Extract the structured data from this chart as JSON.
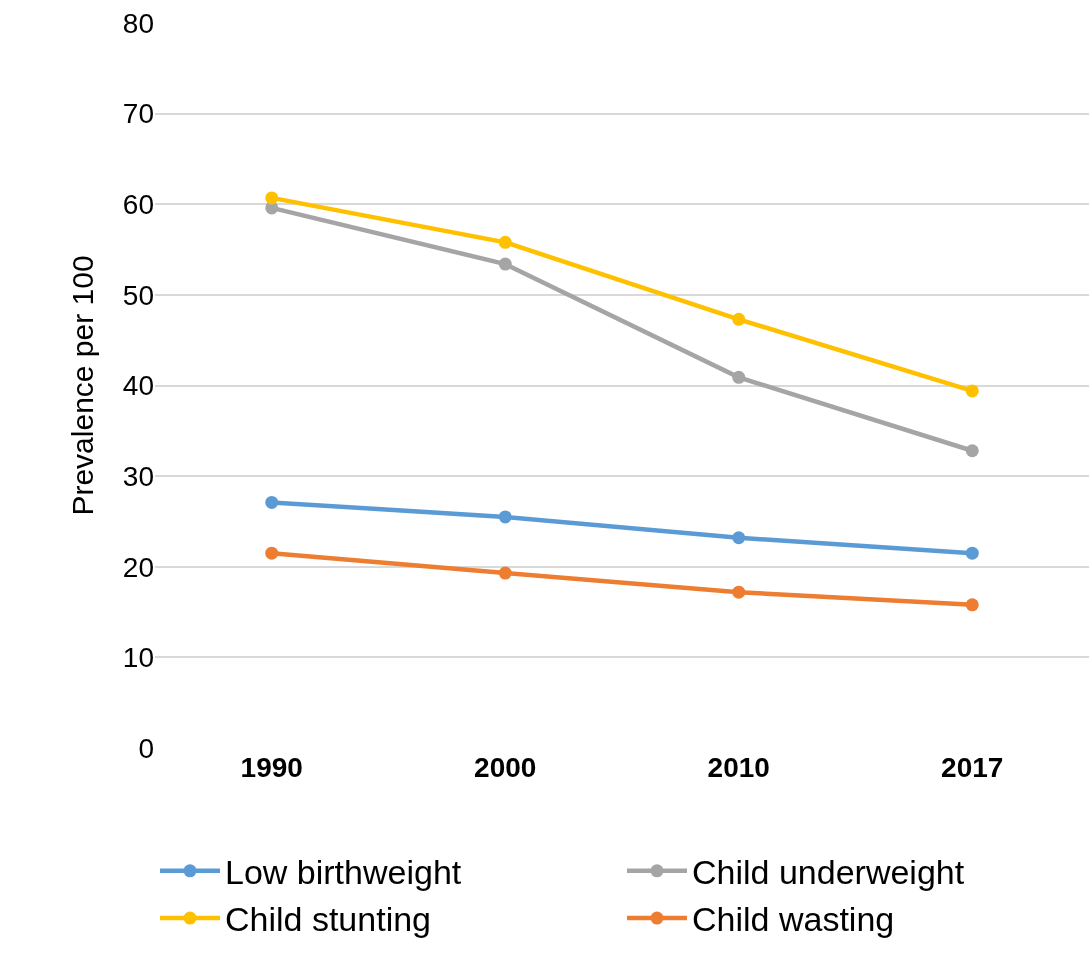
{
  "chart_data": {
    "type": "line",
    "ylabel": "Prevalence per 100",
    "categories": [
      "1990",
      "2000",
      "2010",
      "2017"
    ],
    "series": [
      {
        "name": "Low birthweight",
        "color": "#5b9bd5",
        "values": [
          27.1,
          25.5,
          23.2,
          21.5
        ]
      },
      {
        "name": "Child underweight",
        "color": "#a5a5a5",
        "values": [
          59.6,
          53.4,
          40.9,
          32.8
        ]
      },
      {
        "name": "Child stunting",
        "color": "#ffc000",
        "values": [
          60.7,
          55.8,
          47.3,
          39.4
        ]
      },
      {
        "name": "Child wasting",
        "color": "#ed7d31",
        "values": [
          21.5,
          19.3,
          17.2,
          15.8
        ]
      }
    ],
    "ylim": [
      0,
      80
    ],
    "yticks": [
      0,
      10,
      20,
      30,
      40,
      50,
      60,
      70,
      80
    ],
    "grid": "y",
    "legend": "bottom",
    "marker": "circle",
    "line_style": "solid"
  }
}
